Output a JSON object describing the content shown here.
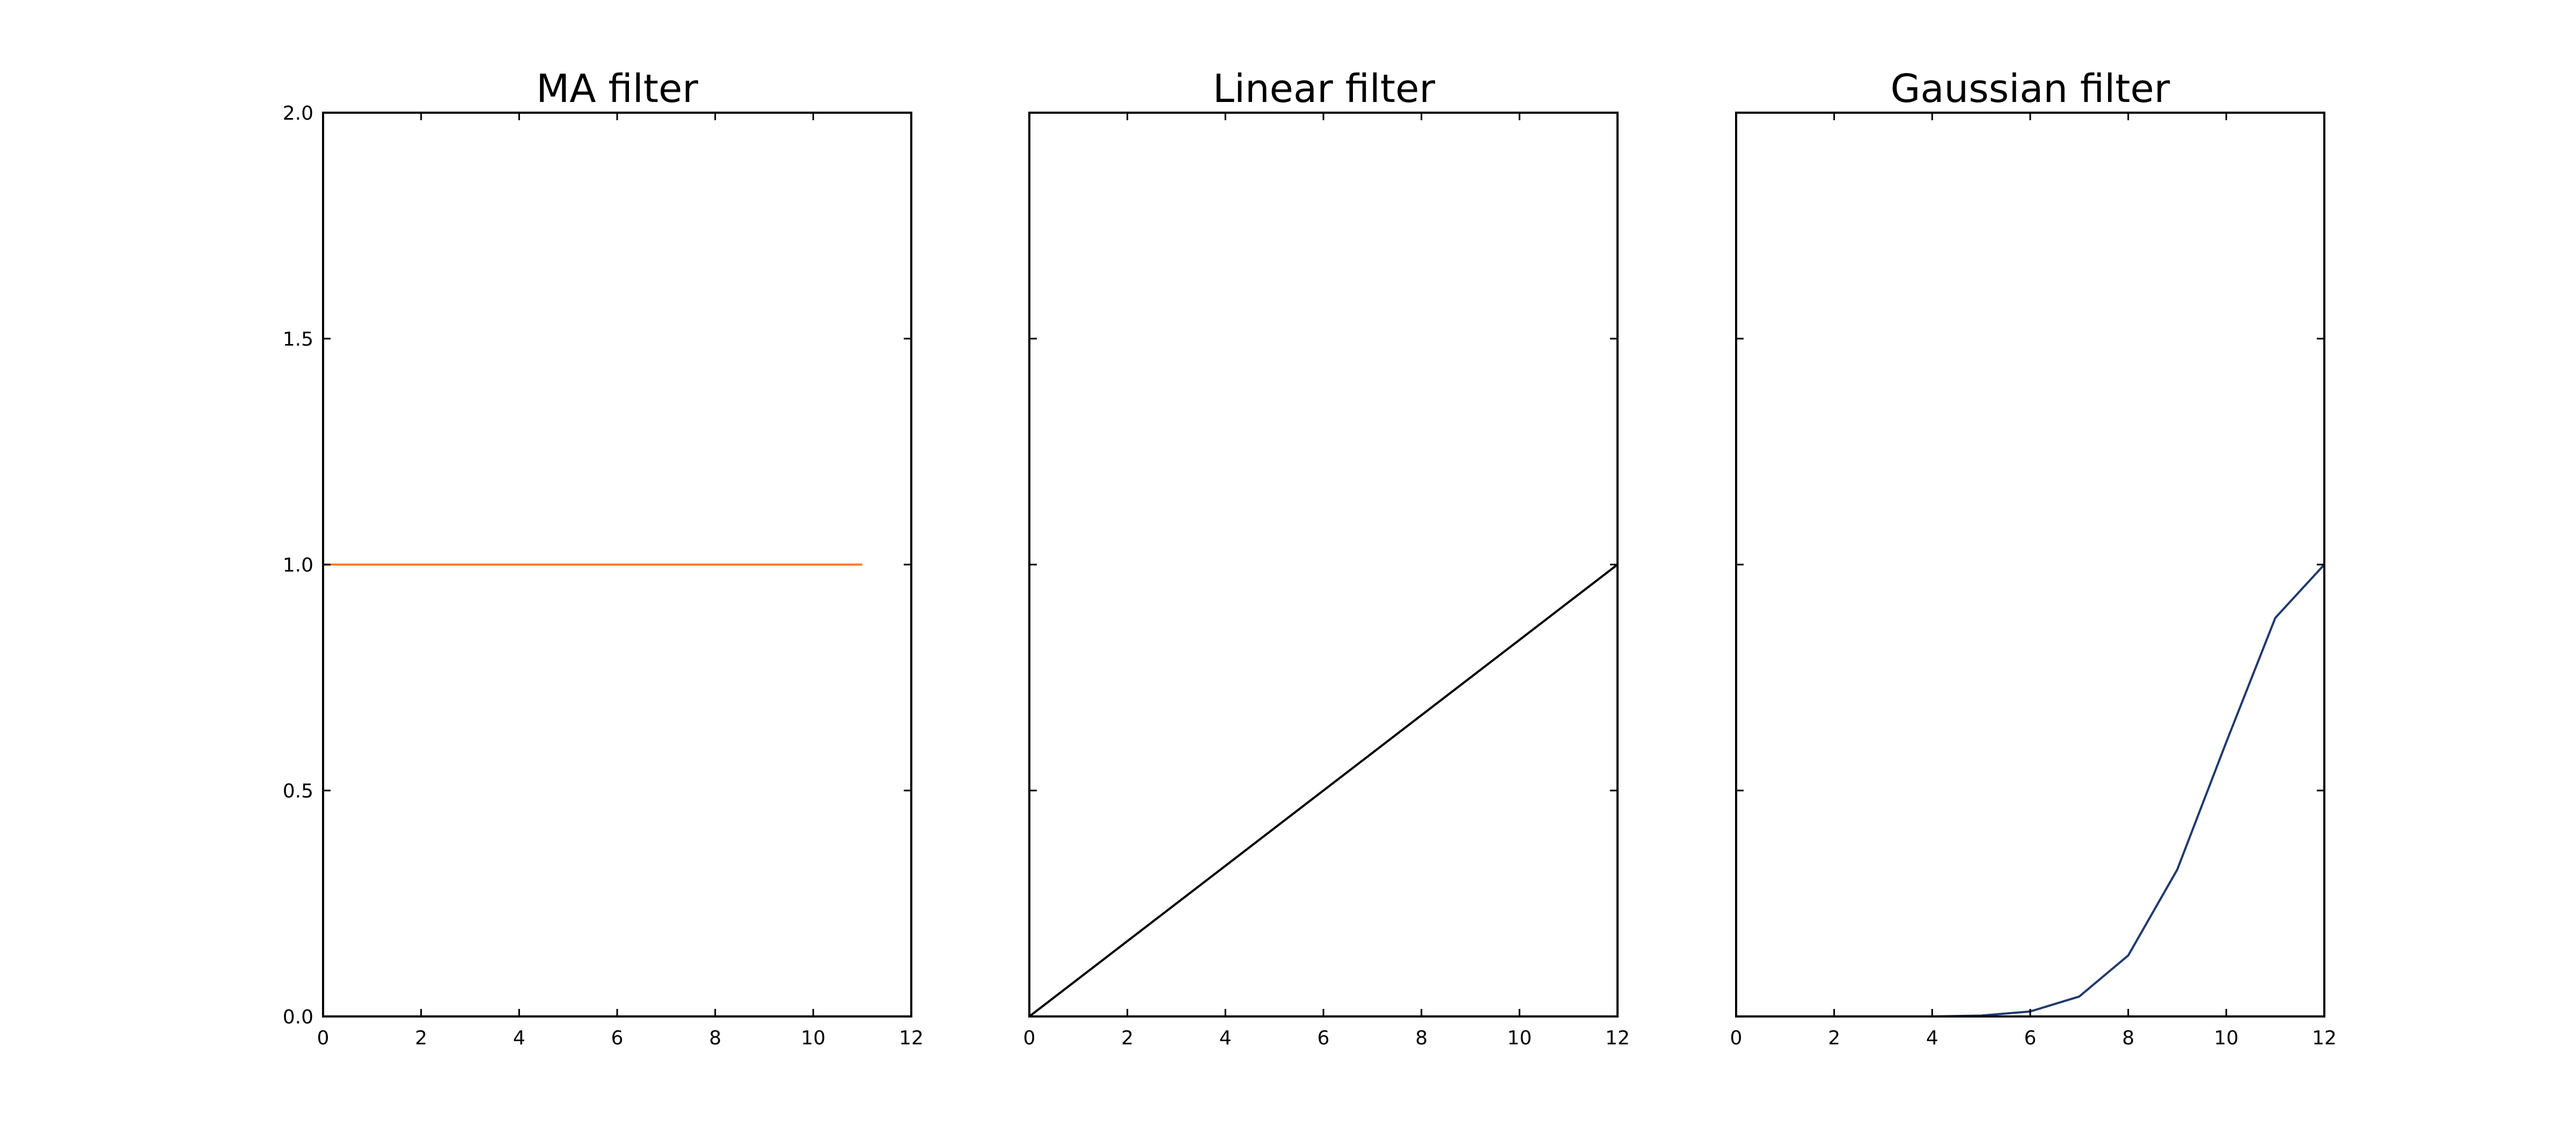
{
  "chart_data": [
    {
      "type": "line",
      "title": "MA filter",
      "xlabel": "",
      "ylabel": "",
      "xlim": [
        0,
        12
      ],
      "ylim": [
        0,
        2
      ],
      "xticks": [
        "0",
        "2",
        "4",
        "6",
        "8",
        "10",
        "12"
      ],
      "yticks": [
        "0.0",
        "0.5",
        "1.0",
        "1.5",
        "2.0"
      ],
      "show_yticklabels": true,
      "grid": false,
      "series": [
        {
          "color": "#ff7f2a",
          "x": [
            0,
            1,
            2,
            3,
            4,
            5,
            6,
            7,
            8,
            9,
            10,
            11
          ],
          "y": [
            1,
            1,
            1,
            1,
            1,
            1,
            1,
            1,
            1,
            1,
            1,
            1
          ]
        }
      ]
    },
    {
      "type": "line",
      "title": "Linear filter",
      "xlabel": "",
      "ylabel": "",
      "xlim": [
        0,
        12
      ],
      "ylim": [
        0,
        2
      ],
      "xticks": [
        "0",
        "2",
        "4",
        "6",
        "8",
        "10",
        "12"
      ],
      "yticks": [
        "0.0",
        "0.5",
        "1.0",
        "1.5",
        "2.0"
      ],
      "show_yticklabels": false,
      "grid": false,
      "series": [
        {
          "color": "#000000",
          "x": [
            0,
            1,
            2,
            3,
            4,
            5,
            6,
            7,
            8,
            9,
            10,
            11,
            12
          ],
          "y": [
            0,
            0.0833,
            0.1667,
            0.25,
            0.3333,
            0.4167,
            0.5,
            0.5833,
            0.6667,
            0.75,
            0.8333,
            0.9167,
            1.0
          ]
        }
      ]
    },
    {
      "type": "line",
      "title": "Gaussian filter",
      "xlabel": "",
      "ylabel": "",
      "xlim": [
        0,
        12
      ],
      "ylim": [
        0,
        2
      ],
      "xticks": [
        "0",
        "2",
        "4",
        "6",
        "8",
        "10",
        "12"
      ],
      "yticks": [
        "0.0",
        "0.5",
        "1.0",
        "1.5",
        "2.0"
      ],
      "show_yticklabels": false,
      "grid": false,
      "series": [
        {
          "color": "#1f3a6e",
          "x": [
            0,
            1,
            2,
            3,
            4,
            5,
            6,
            7,
            8,
            9,
            10,
            11,
            12
          ],
          "y": [
            0,
            0,
            0,
            0,
            0,
            0.002,
            0.011,
            0.044,
            0.135,
            0.325,
            0.607,
            0.882,
            1.0
          ]
        }
      ]
    }
  ]
}
